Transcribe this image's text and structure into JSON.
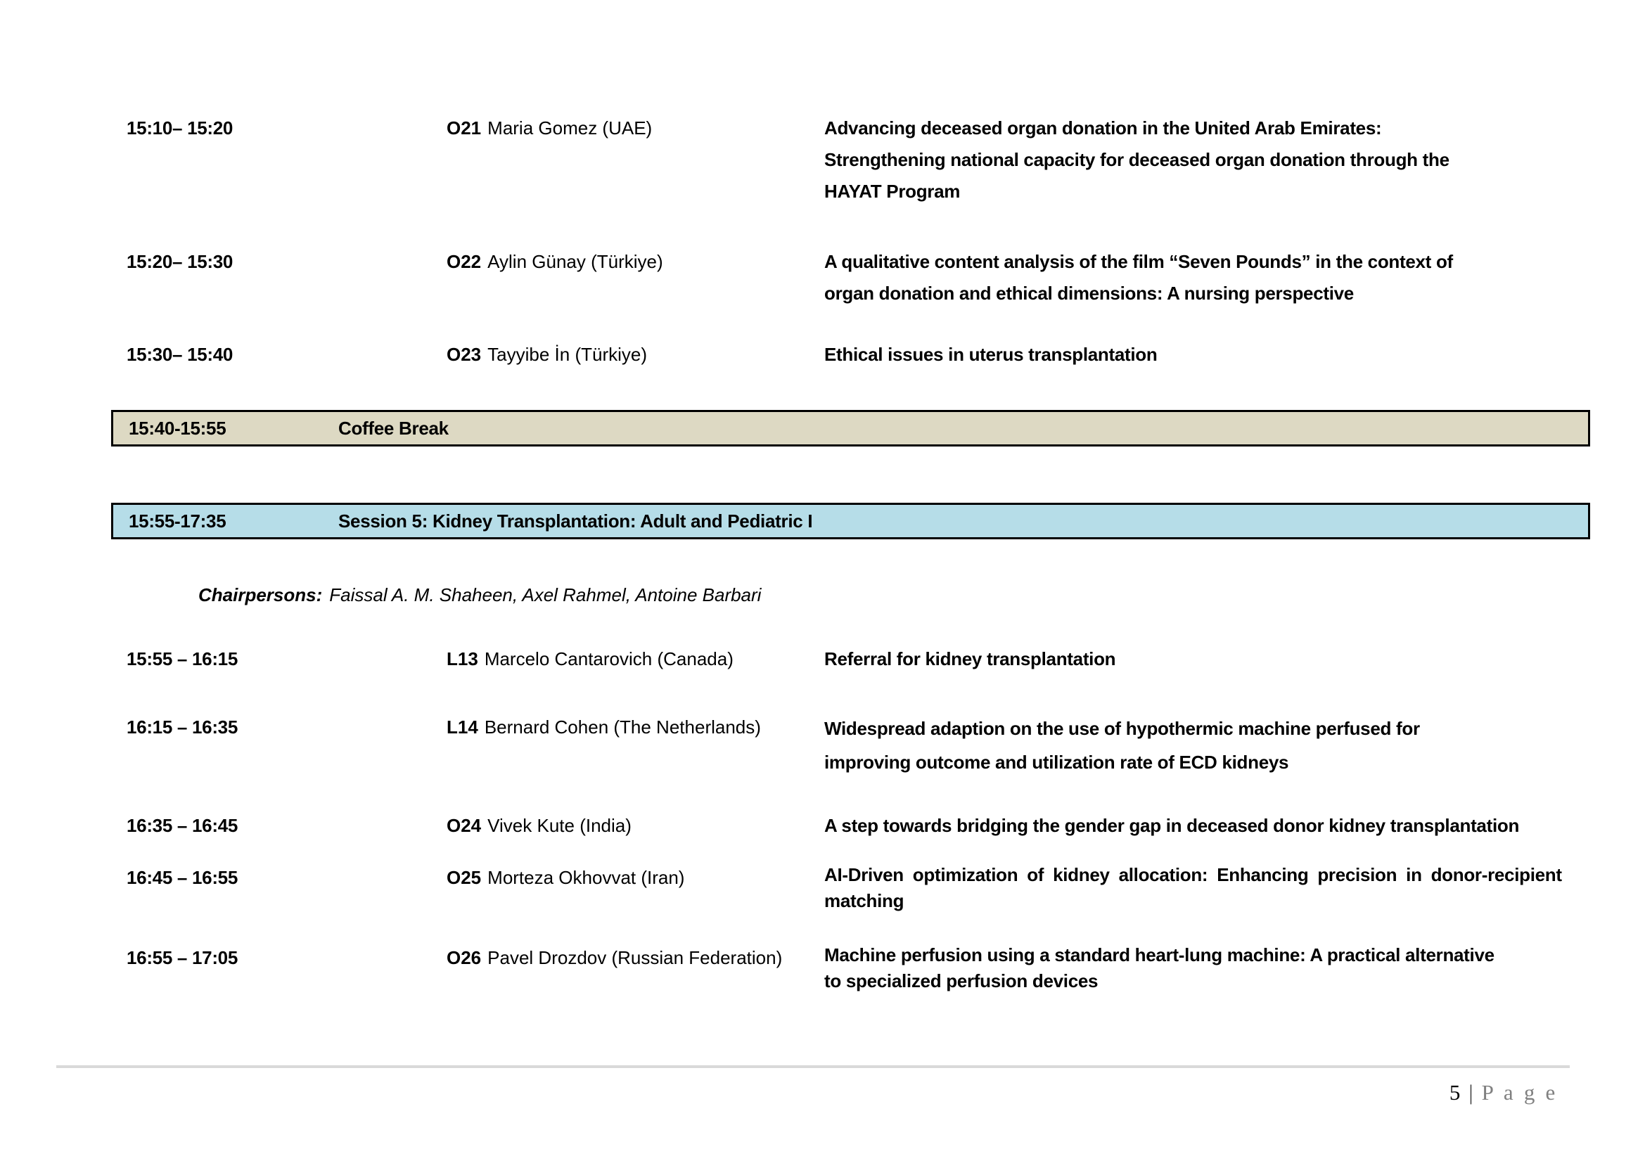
{
  "colors": {
    "coffee_bar_bg": "#DDD9C3",
    "session_bar_bg": "#B6DDE8",
    "footer_rule": "#D9D9D9",
    "footer_gray": "#808080"
  },
  "schedule_top": [
    {
      "time": "15:10– 15:20",
      "code": "O21",
      "speaker": "Maria Gomez (UAE)",
      "title_lines": [
        "Advancing deceased organ donation in the United Arab Emirates:",
        "Strengthening national capacity for deceased organ donation through the",
        "HAYAT Program"
      ]
    },
    {
      "time": "15:20– 15:30",
      "code": "O22",
      "speaker": "Aylin Günay (Türkiye)",
      "title_lines": [
        "A qualitative content analysis of the film “Seven Pounds” in the context of",
        "organ donation and ethical dimensions: A nursing perspective"
      ]
    },
    {
      "time": "15:30– 15:40",
      "code": "O23",
      "speaker": "Tayyibe İn (Türkiye)",
      "title_lines": [
        "Ethical issues in uterus transplantation"
      ]
    }
  ],
  "coffee_break": {
    "time": "15:40-15:55",
    "label": "Coffee Break"
  },
  "session5": {
    "time": "15:55-17:35",
    "label": "Session 5: Kidney Transplantation: Adult and Pediatric I",
    "chairpersons_label": "Chairpersons:",
    "chairpersons": "Faissal A. M. Shaheen, Axel Rahmel, Antoine Barbari"
  },
  "schedule_session5": [
    {
      "time": "15:55 – 16:15",
      "code": "L13",
      "speaker": "Marcelo Cantarovich (Canada)",
      "title_lines": [
        "Referral for kidney transplantation"
      ]
    },
    {
      "time": "16:15 – 16:35",
      "code": "L14",
      "speaker": "Bernard Cohen (The Netherlands)",
      "title_lines": [
        "Widespread adaption on the use of hypothermic machine perfused for",
        "improving outcome and utilization rate of ECD kidneys"
      ]
    },
    {
      "time": "16:35 – 16:45",
      "code": "O24",
      "speaker": "Vivek Kute (India)",
      "title_lines": [
        "A step towards bridging the gender gap in deceased donor kidney transplantation"
      ]
    },
    {
      "time": "16:45 – 16:55",
      "code": "O25",
      "speaker": "Morteza Okhovvat (Iran)",
      "title_lines": [
        "AI-Driven optimization of kidney allocation: Enhancing precision in donor-recipient",
        "matching"
      ]
    },
    {
      "time": "16:55 – 17:05",
      "code": "O26",
      "speaker": "Pavel Drozdov (Russian Federation)",
      "title_lines": [
        "Machine perfusion using a standard heart-lung machine: A practical alternative",
        "to specialized perfusion devices"
      ]
    }
  ],
  "footer": {
    "page_number": "5",
    "separator": "|",
    "page_word": "P a g e"
  }
}
